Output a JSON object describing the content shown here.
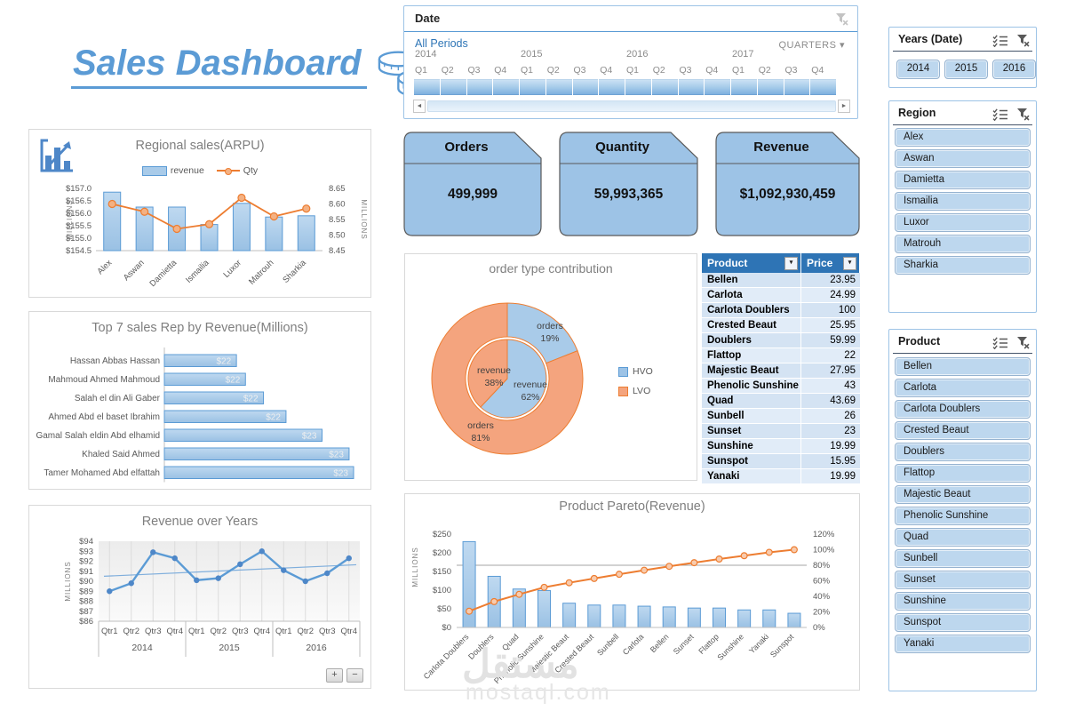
{
  "title": {
    "text": "Sales Dashboard"
  },
  "icons": {
    "scroll_left": "◄",
    "scroll_right": "►",
    "dropdown_caret": "▾"
  },
  "colors": {
    "accent_blue": "#5B9BD5",
    "bar_fill": "#A9CBE9",
    "bar_stroke": "#5B9BD5",
    "orange": "#ED7D31",
    "orange_fill": "#F4A47E",
    "marker_fill": "#F8CBAD",
    "slicer_button": "#BDD7EE",
    "table_header": "#2E74B5",
    "kpi_fill": "#9DC3E6"
  },
  "date_slicer": {
    "header": "Date",
    "all_periods": "All Periods",
    "granularity": "QUARTERS",
    "years": [
      "2014",
      "2015",
      "2016",
      "2017"
    ],
    "quarters": [
      "Q1",
      "Q2",
      "Q3",
      "Q4"
    ]
  },
  "years_slicer": {
    "header": "Years (Date)",
    "items": [
      "2014",
      "2015",
      "2016"
    ]
  },
  "region_slicer": {
    "header": "Region",
    "items": [
      "Alex",
      "Aswan",
      "Damietta",
      "Ismailia",
      "Luxor",
      "Matrouh",
      "Sharkia"
    ]
  },
  "product_slicer": {
    "header": "Product",
    "items": [
      "Bellen",
      "Carlota",
      "Carlota Doublers",
      "Crested Beaut",
      "Doublers",
      "Flattop",
      "Majestic Beaut",
      "Phenolic Sunshine",
      "Quad",
      "Sunbell",
      "Sunset",
      "Sunshine",
      "Sunspot",
      "Yanaki"
    ]
  },
  "kpis": [
    {
      "label": "Orders",
      "value": "499,999"
    },
    {
      "label": "Quantity",
      "value": "59,993,365"
    },
    {
      "label": "Revenue",
      "value": "$1,092,930,459"
    }
  ],
  "product_table": {
    "columns": [
      "Product",
      "Price"
    ],
    "rows": [
      [
        "Bellen",
        "23.95"
      ],
      [
        "Carlota",
        "24.99"
      ],
      [
        "Carlota Doublers",
        "100"
      ],
      [
        "Crested Beaut",
        "25.95"
      ],
      [
        "Doublers",
        "59.99"
      ],
      [
        "Flattop",
        "22"
      ],
      [
        "Majestic Beaut",
        "27.95"
      ],
      [
        "Phenolic Sunshine",
        "43"
      ],
      [
        "Quad",
        "43.69"
      ],
      [
        "Sunbell",
        "26"
      ],
      [
        "Sunset",
        "23"
      ],
      [
        "Sunshine",
        "19.99"
      ],
      [
        "Sunspot",
        "15.95"
      ],
      [
        "Yanaki",
        "19.99"
      ]
    ]
  },
  "zoom_buttons": {
    "plus": "+",
    "minus": "−"
  },
  "watermark": {
    "arabic": "مستقل",
    "domain": "mostaql.com"
  },
  "chart_data": [
    {
      "id": "regional_sales",
      "type": "bar+line",
      "title": "Regional sales(ARPU)",
      "categories": [
        "Alex",
        "Aswan",
        "Damietta",
        "Ismailia",
        "Luxor",
        "Matrouh",
        "Sharkia"
      ],
      "series": [
        {
          "name": "revenue",
          "type": "bar",
          "axis": "left",
          "values": [
            156.85,
            156.25,
            156.25,
            155.55,
            156.4,
            155.85,
            155.9
          ]
        },
        {
          "name": "Qty",
          "type": "line",
          "axis": "right",
          "values": [
            8.6,
            8.575,
            8.52,
            8.535,
            8.62,
            8.56,
            8.585
          ]
        }
      ],
      "left_axis": {
        "label": "MILLIONS",
        "ticks": [
          "$157.0",
          "$156.5",
          "$156.0",
          "$155.5",
          "$155.0",
          "$154.5"
        ],
        "min": 154.5,
        "max": 157.0
      },
      "right_axis": {
        "label": "MILLIONS",
        "ticks": [
          "8.65",
          "8.60",
          "8.55",
          "8.50",
          "8.45"
        ],
        "min": 8.45,
        "max": 8.65
      },
      "legend_position": "top"
    },
    {
      "id": "top7_sales_rep",
      "type": "bar-horizontal",
      "title": "Top 7 sales Rep by Revenue(Millions)",
      "categories": [
        "Hassan Abbas Hassan",
        "Mahmoud Ahmed Mahmoud",
        "Salah el din Ali Gaber",
        "Ahmed Abd el baset Ibrahim",
        "Gamal Salah eldin Abd elhamid",
        "Khaled Said Ahmed",
        "Tamer Mohamed Abd elfattah"
      ],
      "values": [
        21.9,
        22.0,
        22.2,
        22.45,
        22.85,
        23.15,
        23.2
      ],
      "data_labels": [
        "$22",
        "$22",
        "$22",
        "$22",
        "$23",
        "$23",
        "$23"
      ],
      "xlim": [
        21.1,
        23.2
      ]
    },
    {
      "id": "revenue_over_years",
      "type": "line",
      "title": "Revenue over Years",
      "year_groups": [
        "2014",
        "2015",
        "2016"
      ],
      "quarter_labels": [
        "Qtr1",
        "Qtr2",
        "Qtr3",
        "Qtr4"
      ],
      "values": [
        89.0,
        89.8,
        92.9,
        92.3,
        90.1,
        90.3,
        91.7,
        93.0,
        91.1,
        90.0,
        90.8,
        92.3
      ],
      "trendline": {
        "start": 90.5,
        "end": 91.65
      },
      "ylabel": "MILLIONS",
      "yticks": [
        "$94",
        "$93",
        "$92",
        "$91",
        "$90",
        "$89",
        "$88",
        "$87",
        "$86"
      ],
      "ylim": [
        86,
        94
      ]
    },
    {
      "id": "order_type_contribution",
      "type": "donut-nested",
      "title": "order type contribution",
      "legend": [
        "HVO",
        "LVO"
      ],
      "outer_ring": {
        "name": "orders",
        "HVO": 19,
        "LVO": 81
      },
      "inner_pie": {
        "name": "revenue",
        "HVO": 62,
        "LVO": 38
      },
      "slice_labels": [
        {
          "lines": [
            "orders",
            "19%"
          ]
        },
        {
          "lines": [
            "revenue",
            "38%"
          ]
        },
        {
          "lines": [
            "revenue",
            "62%"
          ]
        },
        {
          "lines": [
            "orders",
            "81%"
          ]
        }
      ]
    },
    {
      "id": "product_pareto",
      "type": "pareto",
      "title": "Product Pareto(Revenue)",
      "categories": [
        "Carlota Doublers",
        "Doublers",
        "Quad",
        "Phenolic Sunshine",
        "Majestic Beaut",
        "Crested Beaut",
        "Sunbell",
        "Carlota",
        "Bellen",
        "Sunset",
        "Flattop",
        "Sunshine",
        "Yanaki",
        "Sunspot"
      ],
      "bar_values": [
        230,
        137,
        103,
        99,
        65,
        60,
        60,
        57,
        55,
        52,
        52,
        47,
        47,
        38
      ],
      "cumulative_pct": [
        20.9,
        33.3,
        42.6,
        51.6,
        57.5,
        63.0,
        68.4,
        73.6,
        78.6,
        83.3,
        88.0,
        92.3,
        96.6,
        100
      ],
      "reference_line_pct": 80,
      "left_axis": {
        "label": "MILLIONS",
        "ticks": [
          "$250",
          "$200",
          "$150",
          "$100",
          "$50",
          "$0"
        ],
        "min": 0,
        "max": 250
      },
      "right_axis": {
        "ticks": [
          "120%",
          "100%",
          "80%",
          "60%",
          "40%",
          "20%",
          "0%"
        ],
        "min": 0,
        "max": 120
      }
    }
  ]
}
